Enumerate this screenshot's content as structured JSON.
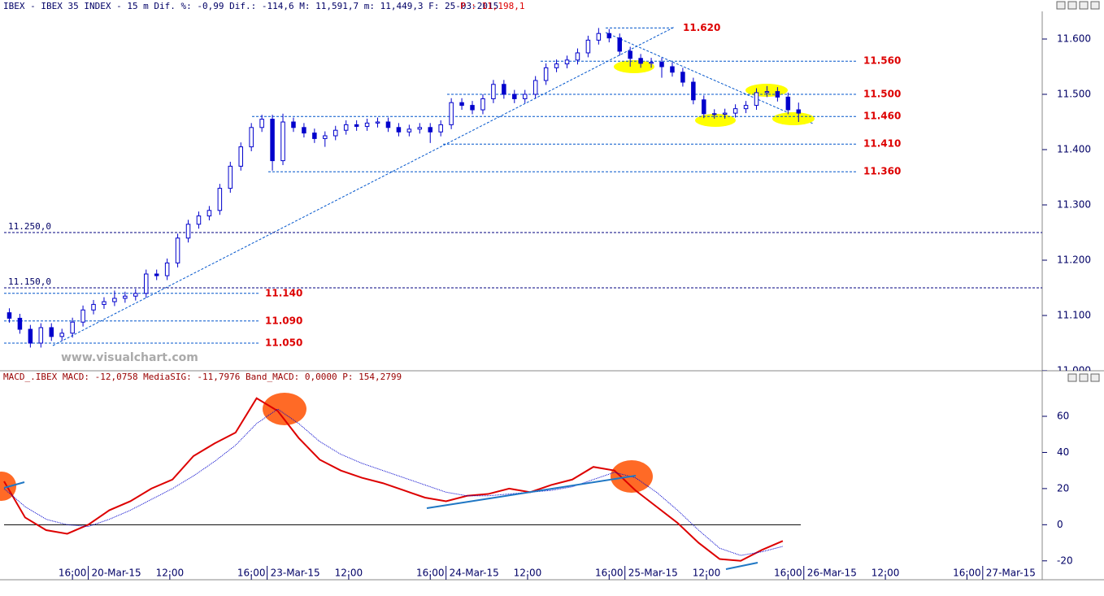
{
  "chart_data": [
    {
      "type": "candlestick",
      "title": "IBEX - IBEX 35 INDEX - 15 m Dif. %: -0,99 Dif.: -114,6 M: 11,591,7 m: 11,449,3 F: 25-03-2015",
      "price_label": "P : 11,198,1",
      "watermark": "www.visualchart.com",
      "color": "#0000cc",
      "x": [
        19,
        21,
        23,
        25,
        27,
        29,
        31,
        33,
        35,
        37,
        39,
        41,
        43,
        45,
        47,
        49,
        51,
        53,
        55,
        57,
        59,
        61,
        63,
        65,
        67,
        69,
        71,
        73,
        75,
        77,
        79,
        81,
        83,
        85,
        87,
        89,
        91,
        93,
        95,
        97,
        99,
        101,
        103,
        105,
        107,
        109,
        111,
        113,
        115,
        117,
        119,
        121,
        123,
        125,
        127,
        129,
        131,
        133,
        135,
        137,
        139,
        141,
        143,
        145,
        147,
        149,
        151,
        153,
        155,
        157,
        159,
        161,
        163,
        165,
        167,
        169
      ],
      "open": [
        11105,
        11095,
        11075,
        11050,
        11078,
        11062,
        11068,
        11088,
        11110,
        11120,
        11125,
        11131,
        11135,
        11140,
        11175,
        11172,
        11195,
        11240,
        11265,
        11280,
        11290,
        11330,
        11370,
        11405,
        11440,
        11455,
        11380,
        11450,
        11440,
        11430,
        11420,
        11425,
        11435,
        11445,
        11442,
        11448,
        11450,
        11440,
        11432,
        11437,
        11440,
        11432,
        11445,
        11485,
        11480,
        11472,
        11492,
        11518,
        11500,
        11492,
        11500,
        11525,
        11548,
        11555,
        11562,
        11575,
        11598,
        11610,
        11602,
        11578,
        11565,
        11556,
        11558,
        11550,
        11540,
        11522,
        11490,
        11465,
        11464,
        11466,
        11474,
        11480,
        11503,
        11505,
        11495,
        11472
      ],
      "high": [
        11113,
        11103,
        11083,
        11086,
        11086,
        11076,
        11096,
        11118,
        11128,
        11133,
        11145,
        11143,
        11148,
        11183,
        11183,
        11203,
        11248,
        11273,
        11288,
        11298,
        11338,
        11378,
        11413,
        11448,
        11463,
        11463,
        11465,
        11458,
        11448,
        11438,
        11433,
        11443,
        11453,
        11453,
        11456,
        11458,
        11458,
        11448,
        11445,
        11448,
        11448,
        11453,
        11493,
        11493,
        11488,
        11500,
        11526,
        11526,
        11508,
        11508,
        11533,
        11556,
        11563,
        11570,
        11583,
        11606,
        11620,
        11618,
        11610,
        11586,
        11573,
        11566,
        11566,
        11558,
        11548,
        11530,
        11498,
        11473,
        11474,
        11482,
        11488,
        11511,
        11515,
        11513,
        11503,
        11485
      ],
      "low": [
        11087,
        11067,
        11042,
        11042,
        11054,
        11054,
        11060,
        11080,
        11102,
        11112,
        11117,
        11123,
        11127,
        11132,
        11164,
        11164,
        11187,
        11232,
        11257,
        11272,
        11282,
        11322,
        11362,
        11397,
        11432,
        11362,
        11372,
        11432,
        11422,
        11412,
        11405,
        11417,
        11427,
        11434,
        11434,
        11440,
        11432,
        11424,
        11424,
        11429,
        11412,
        11424,
        11437,
        11472,
        11464,
        11464,
        11484,
        11492,
        11484,
        11484,
        11492,
        11517,
        11540,
        11547,
        11554,
        11567,
        11590,
        11594,
        11570,
        11550,
        11548,
        11548,
        11530,
        11532,
        11514,
        11482,
        11457,
        11456,
        11456,
        11458,
        11466,
        11472,
        11495,
        11487,
        11464,
        11450
      ],
      "close": [
        11095,
        11075,
        11050,
        11078,
        11062,
        11068,
        11088,
        11110,
        11120,
        11125,
        11131,
        11135,
        11140,
        11175,
        11172,
        11195,
        11240,
        11265,
        11280,
        11290,
        11330,
        11370,
        11405,
        11440,
        11455,
        11380,
        11450,
        11440,
        11430,
        11420,
        11425,
        11435,
        11445,
        11442,
        11448,
        11450,
        11440,
        11432,
        11437,
        11440,
        11432,
        11445,
        11485,
        11480,
        11472,
        11492,
        11518,
        11500,
        11492,
        11500,
        11525,
        11548,
        11555,
        11562,
        11575,
        11598,
        11610,
        11602,
        11578,
        11565,
        11556,
        11558,
        11550,
        11540,
        11522,
        11490,
        11465,
        11464,
        11466,
        11474,
        11480,
        11503,
        11505,
        11495,
        11472,
        11466
      ],
      "xlim": [
        18,
        215
      ],
      "ylim": [
        11000,
        11650
      ],
      "yticks": [
        {
          "value": 11000,
          "label": "11.000"
        },
        {
          "value": 11100,
          "label": "11.100"
        },
        {
          "value": 11200,
          "label": "11.200"
        },
        {
          "value": 11300,
          "label": "11.300"
        },
        {
          "value": 11400,
          "label": "11.400"
        },
        {
          "value": 11500,
          "label": "11.500"
        },
        {
          "value": 11600,
          "label": "11.600"
        }
      ],
      "levels": [
        {
          "value": 11620,
          "label": "11.620"
        },
        {
          "value": 11560,
          "label": "11.560"
        },
        {
          "value": 11500,
          "label": "11.500"
        },
        {
          "value": 11460,
          "label": "11.460"
        },
        {
          "value": 11410,
          "label": "11.410"
        },
        {
          "value": 11360,
          "label": "11.360"
        },
        {
          "value": 11140,
          "label": "11.140"
        },
        {
          "value": 11090,
          "label": "11.090"
        },
        {
          "value": 11050,
          "label": "11.050"
        }
      ],
      "level_color": "#dd0000",
      "hlines": [
        {
          "value": 11250,
          "label": "11.250,0"
        },
        {
          "value": 11150,
          "label": "11.150,0"
        }
      ]
    },
    {
      "type": "line",
      "title": "MACD_.IBEX MACD: -12,0758 MediaSIG: -11,7976 Band_MACD: 0,0000 P: 154,2799",
      "x": [
        18,
        22,
        26,
        30,
        34,
        38,
        42,
        46,
        50,
        54,
        58,
        62,
        66,
        70,
        74,
        78,
        82,
        86,
        90,
        94,
        98,
        102,
        106,
        110,
        114,
        118,
        122,
        126,
        130,
        134,
        138,
        142,
        146,
        150,
        154,
        158,
        162,
        166
      ],
      "series": [
        {
          "name": "MACD",
          "color": "#dd0000",
          "values": [
            24,
            4,
            -3,
            -5,
            0,
            8,
            13,
            20,
            25,
            38,
            45,
            51,
            70,
            63,
            48,
            36,
            30,
            26,
            23,
            19,
            15,
            13,
            16,
            17,
            20,
            18,
            22,
            25,
            32,
            30,
            19,
            10,
            1,
            -10,
            -19,
            -20,
            -14,
            -9
          ]
        },
        {
          "name": "MediaSIG",
          "color": "#0000cc",
          "values": [
            20,
            10,
            3,
            0,
            -1,
            3,
            8,
            14,
            20,
            27,
            35,
            44,
            56,
            64,
            56,
            46,
            39,
            34,
            30,
            26,
            22,
            18,
            16,
            16,
            17,
            18,
            19,
            21,
            25,
            29,
            26,
            18,
            8,
            -3,
            -13,
            -17,
            -15,
            -12
          ]
        }
      ],
      "xlim": [
        18,
        215
      ],
      "ylim": [
        -30,
        78
      ],
      "yticks": [
        -20,
        0,
        20,
        40,
        60
      ],
      "zero_line": 0,
      "xticks": [
        {
          "value": 31,
          "label": "16:00"
        },
        {
          "value": 34,
          "label": "20-Mar-15"
        },
        {
          "value": 49.5,
          "label": "12:00"
        },
        {
          "value": 65,
          "label": "16:00"
        },
        {
          "value": 68,
          "label": "23-Mar-15"
        },
        {
          "value": 83.5,
          "label": "12:00"
        },
        {
          "value": 99,
          "label": "16:00"
        },
        {
          "value": 102,
          "label": "24-Mar-15"
        },
        {
          "value": 117.5,
          "label": "12:00"
        },
        {
          "value": 133,
          "label": "16:00"
        },
        {
          "value": 136,
          "label": "25-Mar-15"
        },
        {
          "value": 151.5,
          "label": "12:00"
        },
        {
          "value": 167,
          "label": "16:00"
        },
        {
          "value": 170,
          "label": "26-Mar-15"
        },
        {
          "value": 185.5,
          "label": "12:00"
        },
        {
          "value": 201,
          "label": "16:00"
        },
        {
          "value": 204,
          "label": "27-Mar-15"
        }
      ]
    }
  ]
}
